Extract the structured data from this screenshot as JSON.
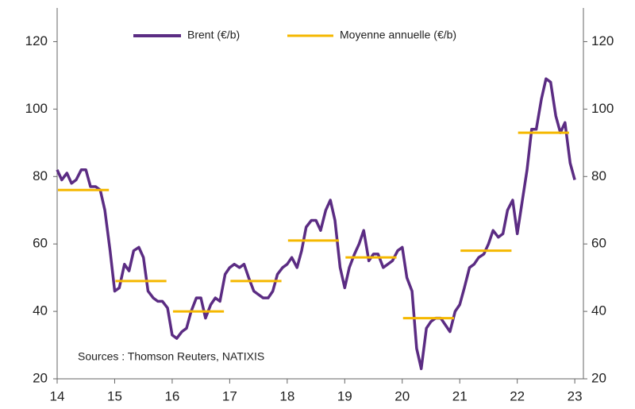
{
  "chart_data": {
    "type": "line",
    "annotations": [
      "Sources : Thomson Reuters, NATIXIS"
    ],
    "xlim": [
      14,
      23.15
    ],
    "xticks": [
      14,
      15,
      16,
      17,
      18,
      19,
      20,
      21,
      22,
      23
    ],
    "ylim": [
      20,
      130
    ],
    "yticks": [
      20,
      40,
      60,
      80,
      100,
      120
    ],
    "y2lim": [
      20,
      130
    ],
    "y2ticks": [
      20,
      40,
      60,
      80,
      100,
      120
    ],
    "grid": false,
    "legend": "top",
    "series": [
      {
        "name": "Brent (€/b)",
        "color": "#5b2c83",
        "x": [
          14.0,
          14.08,
          14.17,
          14.25,
          14.33,
          14.42,
          14.5,
          14.58,
          14.67,
          14.75,
          14.83,
          14.92,
          15.0,
          15.08,
          15.17,
          15.25,
          15.33,
          15.42,
          15.5,
          15.58,
          15.67,
          15.75,
          15.83,
          15.92,
          16.0,
          16.08,
          16.17,
          16.25,
          16.33,
          16.42,
          16.5,
          16.58,
          16.67,
          16.75,
          16.83,
          16.92,
          17.0,
          17.08,
          17.17,
          17.25,
          17.33,
          17.42,
          17.5,
          17.58,
          17.67,
          17.75,
          17.83,
          17.92,
          18.0,
          18.08,
          18.17,
          18.25,
          18.33,
          18.42,
          18.5,
          18.58,
          18.67,
          18.75,
          18.83,
          18.92,
          19.0,
          19.08,
          19.17,
          19.25,
          19.33,
          19.42,
          19.5,
          19.58,
          19.67,
          19.75,
          19.83,
          19.92,
          20.0,
          20.08,
          20.17,
          20.25,
          20.33,
          20.42,
          20.5,
          20.58,
          20.67,
          20.75,
          20.83,
          20.92,
          21.0,
          21.08,
          21.17,
          21.25,
          21.33,
          21.42,
          21.5,
          21.58,
          21.67,
          21.75,
          21.83,
          21.92,
          22.0,
          22.08,
          22.17,
          22.25,
          22.33,
          22.42,
          22.5,
          22.58,
          22.67,
          22.75,
          22.83,
          22.92,
          23.0
        ],
        "values": [
          82,
          79,
          81,
          78,
          79,
          82,
          82,
          77,
          77,
          76,
          70,
          58,
          46,
          47,
          54,
          52,
          58,
          59,
          56,
          46,
          44,
          43,
          43,
          41,
          33,
          32,
          34,
          35,
          40,
          44,
          44,
          38,
          42,
          44,
          43,
          51,
          53,
          54,
          53,
          54,
          50,
          46,
          45,
          44,
          44,
          46,
          51,
          53,
          54,
          56,
          53,
          58,
          65,
          67,
          67,
          64,
          70,
          73,
          67,
          53,
          47,
          53,
          57,
          60,
          64,
          55,
          57,
          57,
          53,
          54,
          55,
          58,
          59,
          50,
          46,
          29,
          23,
          35,
          37,
          38,
          38,
          36,
          34,
          40,
          42,
          47,
          53,
          54,
          56,
          57,
          60,
          64,
          62,
          63,
          70,
          73,
          63,
          72,
          82,
          94,
          94,
          103,
          109,
          108,
          98,
          93,
          96,
          84,
          79
        ]
      },
      {
        "name": "Moyenne annuelle (€/b)",
        "color": "#f5b800",
        "x": [
          14,
          15,
          16,
          17,
          18,
          19,
          20,
          21,
          22
        ],
        "values": [
          76,
          49,
          40,
          49,
          61,
          56,
          38,
          58,
          93
        ]
      }
    ]
  }
}
